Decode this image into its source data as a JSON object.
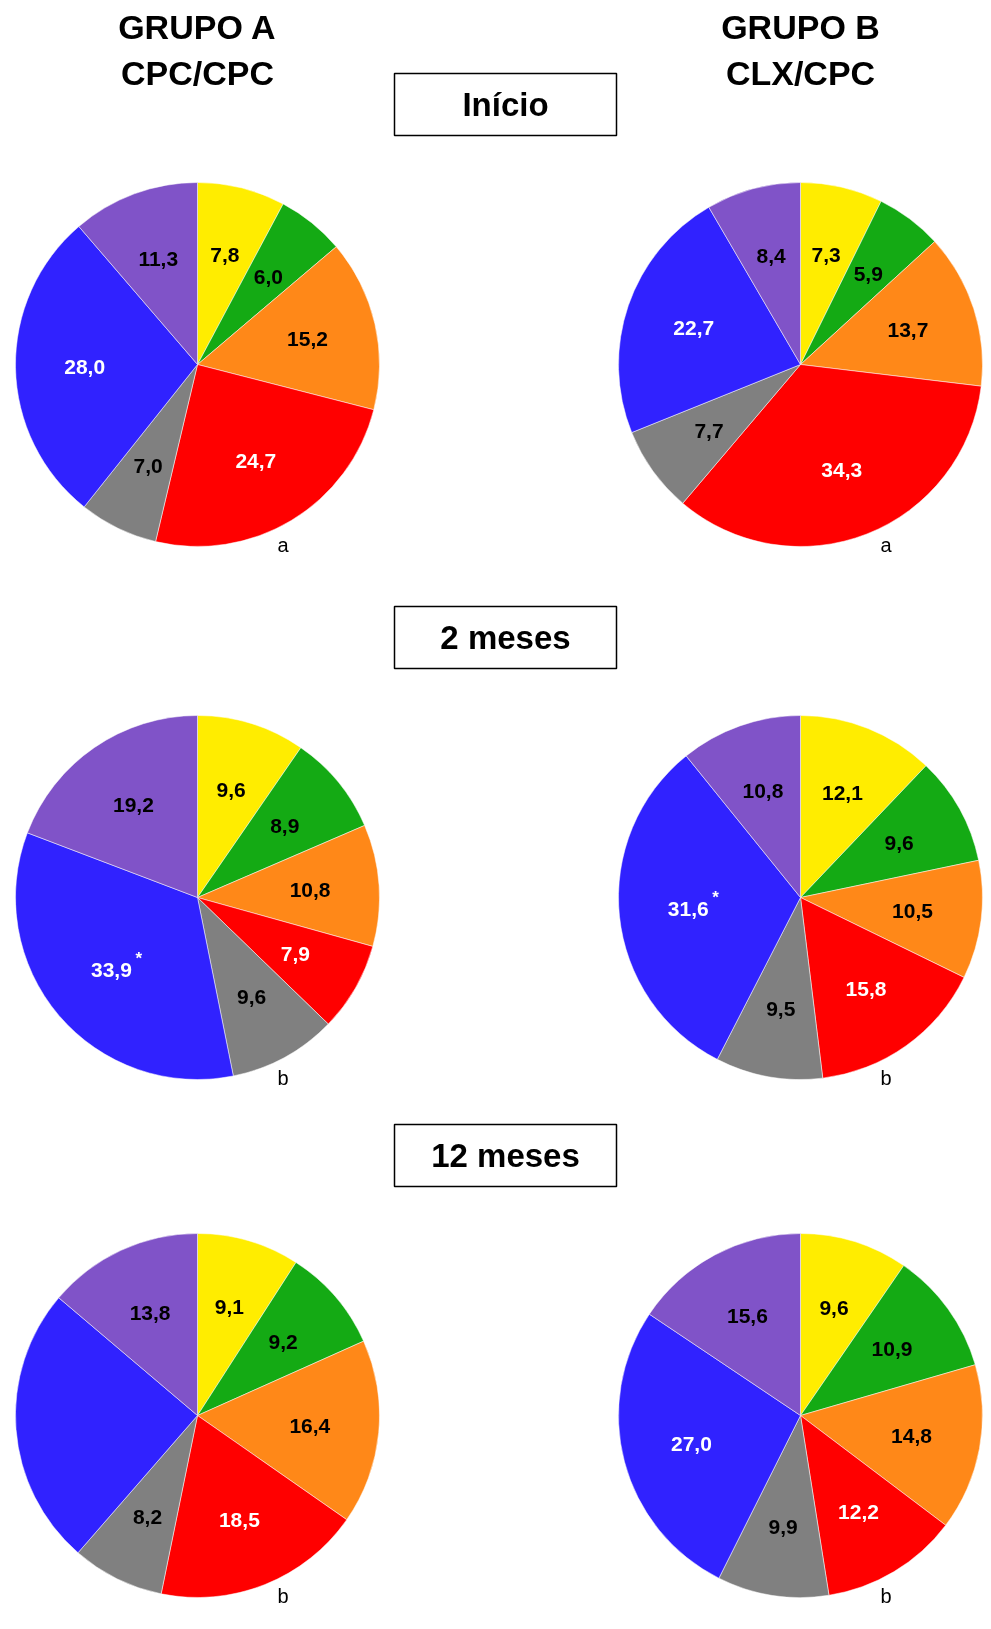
{
  "chart_data": [
    {
      "type": "pie",
      "title": "GRUPO A\nCPC/CPC",
      "subtitle": "Início",
      "categories": [
        null,
        null,
        null,
        null,
        null,
        null,
        null
      ],
      "values": [
        7.8,
        6.0,
        15.2,
        24.7,
        7.0,
        28.0,
        11.3
      ],
      "colors": [
        "#ffed00",
        "#14aa14",
        "#ff8818",
        "#ff0000",
        "#808080",
        "#3022ff",
        "#8053c8"
      ],
      "value_labels": [
        "7,8",
        "6,0",
        "15,2",
        "24,7",
        "7,0",
        "28,0",
        "11,3"
      ],
      "annotations": [
        "a"
      ]
    },
    {
      "type": "pie",
      "title": "GRUPO B\nCLX/CPC",
      "categories": [
        null,
        null,
        null,
        null,
        null,
        null,
        null
      ],
      "values": [
        7.3,
        5.9,
        13.7,
        34.3,
        7.7,
        22.7,
        8.4
      ],
      "colors": [
        "#ffed00",
        "#14aa14",
        "#ff8818",
        "#ff0000",
        "#808080",
        "#3022ff",
        "#8053c8"
      ],
      "value_labels": [
        "7,3",
        "5,9",
        "13,7",
        "34,3",
        "7,7",
        "22,7",
        "8,4"
      ],
      "annotations": [
        "a"
      ]
    },
    {
      "type": "pie",
      "subtitle": "2 meses",
      "categories": [
        null,
        null,
        null,
        null,
        null,
        null,
        null
      ],
      "values": [
        9.6,
        8.9,
        10.8,
        7.9,
        9.6,
        33.9,
        19.2
      ],
      "colors": [
        "#ffed00",
        "#14aa14",
        "#ff8818",
        "#ff0000",
        "#808080",
        "#3022ff",
        "#8053c8"
      ],
      "value_labels": [
        "9,6",
        "8,9",
        "10,8",
        "7,9",
        "9,6",
        "33,9$^{*}$",
        "19,2"
      ],
      "annotations": [
        "b"
      ]
    },
    {
      "type": "pie",
      "categories": [
        null,
        null,
        null,
        null,
        null,
        null,
        null
      ],
      "values": [
        12.1,
        9.6,
        10.5,
        15.8,
        9.5,
        31.6,
        10.8
      ],
      "colors": [
        "#ffed00",
        "#14aa14",
        "#ff8818",
        "#ff0000",
        "#808080",
        "#3022ff",
        "#8053c8"
      ],
      "value_labels": [
        "12,1",
        "9,6",
        "10,5",
        "15,8",
        "9,5",
        "31,6$^{*}$",
        "10,8"
      ],
      "annotations": [
        "b"
      ]
    },
    {
      "type": "pie",
      "subtitle": "12 meses",
      "categories": [
        null,
        null,
        null,
        null,
        null,
        null,
        null
      ],
      "values": [
        9.1,
        9.2,
        16.4,
        18.5,
        8.2,
        24.8,
        13.8
      ],
      "colors": [
        "#ffed00",
        "#14aa14",
        "#ff8818",
        "#ff0000",
        "#808080",
        "#3022ff",
        "#8053c8"
      ],
      "value_labels": [
        "9,1",
        "9,2",
        "16,4",
        "18,5",
        "8,2",
        null,
        "13,8"
      ],
      "annotations": [
        "b"
      ]
    },
    {
      "type": "pie",
      "categories": [
        null,
        null,
        null,
        null,
        null,
        null,
        null
      ],
      "values": [
        9.6,
        10.9,
        14.8,
        12.2,
        9.9,
        27.0,
        15.6
      ],
      "colors": [
        "#ffed00",
        "#14aa14",
        "#ff8818",
        "#ff0000",
        "#808080",
        "#3022ff",
        "#8053c8"
      ],
      "value_labels": [
        "9,6",
        "10,9",
        "14,8",
        "12,2",
        "9,9",
        "27,0",
        "15,6"
      ],
      "annotations": [
        "b"
      ]
    }
  ]
}
